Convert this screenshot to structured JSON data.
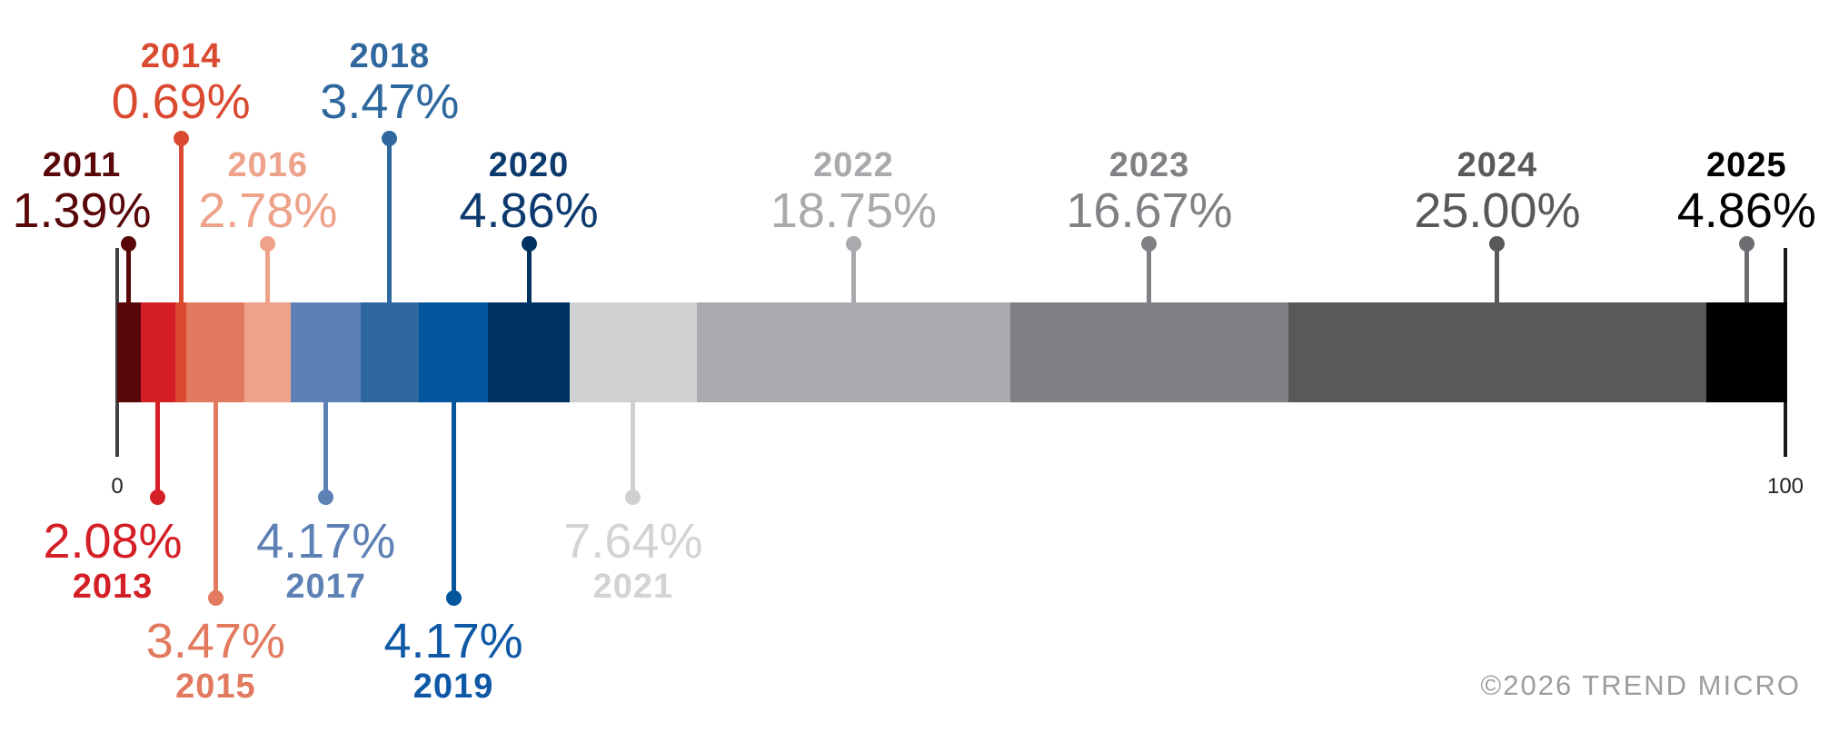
{
  "chart_data": {
    "type": "bar",
    "variant": "horizontal-100pct-stacked-timeline",
    "title": "",
    "categories": [
      "2011",
      "2013",
      "2014",
      "2015",
      "2016",
      "2017",
      "2018",
      "2019",
      "2020",
      "2021",
      "2022",
      "2023",
      "2024",
      "2025"
    ],
    "values": [
      1.39,
      2.08,
      0.69,
      3.47,
      2.78,
      4.17,
      3.47,
      4.17,
      4.86,
      7.64,
      18.75,
      16.67,
      25.0,
      4.86
    ],
    "series": [
      {
        "year": "2011",
        "label": "1.39%",
        "value": 1.39,
        "color": "#590708",
        "label_side": "top",
        "label_row": "near",
        "label_center_x": 90
      },
      {
        "year": "2013",
        "label": "2.08%",
        "value": 2.08,
        "color": "#d51f26",
        "label_side": "bottom",
        "label_row": "near",
        "label_center_x": 124
      },
      {
        "year": "2014",
        "label": "0.69%",
        "value": 0.69,
        "color": "#da4a31",
        "label_side": "top",
        "label_row": "far"
      },
      {
        "year": "2015",
        "label": "3.47%",
        "value": 3.47,
        "color": "#e17a5e",
        "label_side": "bottom",
        "label_row": "far"
      },
      {
        "year": "2016",
        "label": "2.78%",
        "value": 2.78,
        "color": "#eda289",
        "label_side": "top",
        "label_row": "near"
      },
      {
        "year": "2017",
        "label": "4.17%",
        "value": 4.17,
        "color": "#5e81b5",
        "label_side": "bottom",
        "label_row": "near"
      },
      {
        "year": "2018",
        "label": "3.47%",
        "value": 3.47,
        "color": "#2f689e",
        "label_side": "top",
        "label_row": "far"
      },
      {
        "year": "2019",
        "label": "4.17%",
        "value": 4.17,
        "color": "#03569b",
        "label_color": "#0e58a6",
        "label_side": "bottom",
        "label_row": "far"
      },
      {
        "year": "2020",
        "label": "4.86%",
        "value": 4.86,
        "color": "#003261",
        "label_color": "#0d3a6e",
        "label_side": "top",
        "label_row": "near"
      },
      {
        "year": "2021",
        "label": "7.64%",
        "value": 7.64,
        "color": "#cfd0d2",
        "label_color": "#d2d3d5",
        "label_side": "bottom",
        "label_row": "near"
      },
      {
        "year": "2022",
        "label": "18.75%",
        "value": 18.75,
        "color": "#a9aaad",
        "label_side": "top",
        "label_row": "near"
      },
      {
        "year": "2023",
        "label": "16.67%",
        "value": 16.67,
        "color": "#808184",
        "label_side": "top",
        "label_row": "near"
      },
      {
        "year": "2024",
        "label": "25.00%",
        "value": 25.0,
        "color": "#58595b",
        "label_side": "top",
        "label_row": "near"
      },
      {
        "year": "2025",
        "label": "4.86%",
        "value": 4.86,
        "color": "#000000",
        "label_color": "#000000",
        "leader_color": "#6d6e71",
        "label_side": "top",
        "label_row": "near"
      }
    ],
    "axis": {
      "start_label": "0",
      "end_label": "100"
    },
    "xlim": [
      0,
      100
    ],
    "legend": false,
    "grid": false,
    "footer": "©2026 TREND MICRO"
  }
}
